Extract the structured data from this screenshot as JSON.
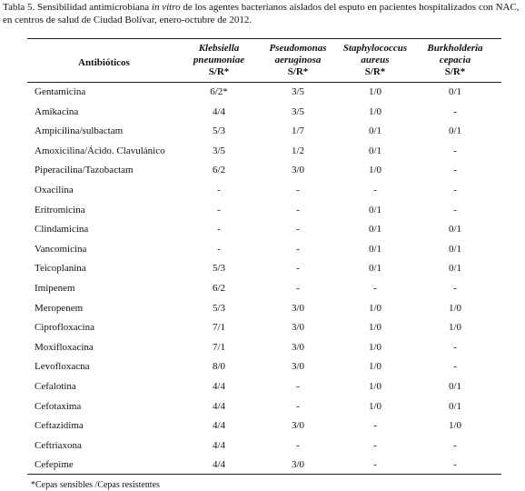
{
  "caption": {
    "before": "Tabla 5. Sensibilidad antimicrobiana ",
    "italic": "in vitro",
    "after": " de los agentes bacterianos aislados del esputo en pacientes hospitalizados con NAC, en centros de salud de Ciudad Bolívar, enero-octubre de 2012."
  },
  "table": {
    "header": {
      "first": "Antibióticos",
      "columns": [
        {
          "organism": [
            "Klebsiella",
            "pneumoniae"
          ],
          "unit": "S/R*"
        },
        {
          "organism": [
            "Pseudomonas",
            "aeruginosa"
          ],
          "unit": "S/R*"
        },
        {
          "organism": [
            "Staphylococcus",
            "aureus"
          ],
          "unit": "S/R*"
        },
        {
          "organism": [
            "Burkholderia",
            "cepacia"
          ],
          "unit": "S/R*"
        }
      ]
    },
    "rows": [
      [
        "Gentamicina",
        "6/2*",
        "3/5",
        "1/0",
        "0/1"
      ],
      [
        "Amikacina",
        "4/4",
        "3/5",
        "1/0",
        "-"
      ],
      [
        "Ampicilina/sulbactam",
        "5/3",
        "1/7",
        "0/1",
        "0/1"
      ],
      [
        "Amoxicilina/Ácido. Clavulánico",
        "3/5",
        "1/2",
        "0/1",
        "-"
      ],
      [
        "Piperacilina/Tazobactam",
        "6/2",
        "3/0",
        "1/0",
        "-"
      ],
      [
        "Oxacilina",
        "-",
        "-",
        "-",
        "-"
      ],
      [
        "Eritromicina",
        "-",
        "-",
        "0/1",
        "-"
      ],
      [
        "Clindamicina",
        "-",
        "-",
        "0/1",
        "0/1"
      ],
      [
        "Vancomicina",
        "-",
        "-",
        "0/1",
        "0/1"
      ],
      [
        "Teicoplanina",
        "5/3",
        "-",
        "0/1",
        "0/1"
      ],
      [
        "Imipenem",
        "6/2",
        "-",
        "-",
        "-"
      ],
      [
        "Meropenem",
        "5/3",
        "3/0",
        "1/0",
        "1/0"
      ],
      [
        "Ciprofloxacina",
        "7/1",
        "3/0",
        "1/0",
        "1/0"
      ],
      [
        "Moxifloxacina",
        "7/1",
        "3/0",
        "1/0",
        "-"
      ],
      [
        "Levofloxacna",
        "8/0",
        "3/0",
        "1/0",
        "-"
      ],
      [
        "Cefalotina",
        "4/4",
        "-",
        "1/0",
        "0/1"
      ],
      [
        "Cefotaxima",
        "4/4",
        "-",
        "1/0",
        "0/1"
      ],
      [
        "Ceftazidima",
        "4/4",
        "3/0",
        "-",
        "1/0"
      ],
      [
        "Ceftriaxona",
        "4/4",
        "-",
        "-",
        "-"
      ],
      [
        "Cefepime",
        "4/4",
        "3/0",
        "-",
        "-"
      ]
    ]
  },
  "footnote": "*Cepas sensibles /Cepas resistentes"
}
